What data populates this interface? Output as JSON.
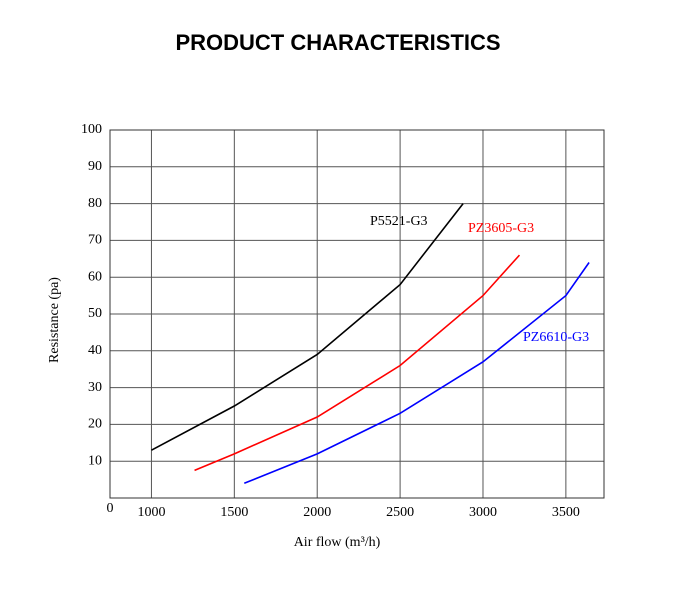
{
  "chart_data": {
    "type": "line",
    "title": "PRODUCT CHARACTERISTICS",
    "x_label": "Air flow (m³/h)",
    "y_label": "Resistance (pa)",
    "xlim": [
      750,
      3730
    ],
    "ylim": [
      0,
      100
    ],
    "xticks": [
      1000,
      1500,
      2000,
      2500,
      3000,
      3500
    ],
    "yticks": [
      0,
      10,
      20,
      30,
      40,
      50,
      60,
      70,
      80,
      90,
      100
    ],
    "grid": true,
    "series": [
      {
        "name": "P5521-G3",
        "color": "#000000",
        "x": [
          1000,
          1500,
          2000,
          2500,
          2880
        ],
        "values": [
          13,
          25,
          39,
          58,
          80
        ]
      },
      {
        "name": "PZ3605-G3",
        "color": "#ff0000",
        "x": [
          1260,
          1500,
          2000,
          2500,
          3000,
          3220
        ],
        "values": [
          7.5,
          12,
          22,
          36,
          55,
          66
        ]
      },
      {
        "name": "PZ6610-G3",
        "color": "#0000ff",
        "x": [
          1560,
          2000,
          2500,
          3000,
          3500,
          3640
        ],
        "values": [
          4,
          12,
          23,
          37,
          55,
          64
        ]
      }
    ]
  }
}
